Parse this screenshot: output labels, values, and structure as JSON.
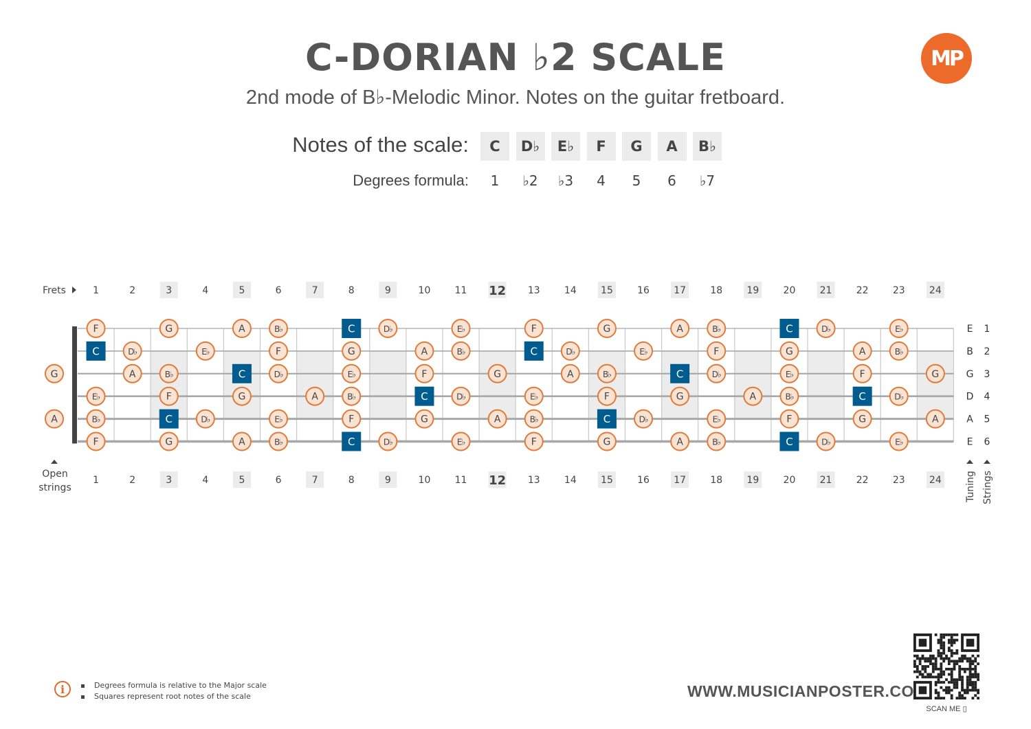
{
  "title": "C-DORIAN ♭2 SCALE",
  "subtitle": "2nd mode of B♭-Melodic Minor. Notes on the guitar fretboard.",
  "logo": "MP",
  "notes_label": "Notes of the scale:",
  "notes": [
    "C",
    "D♭",
    "E♭",
    "F",
    "G",
    "A",
    "B♭"
  ],
  "degrees_label": "Degrees formula:",
  "degrees": [
    "1",
    "♭2",
    "♭3",
    "4",
    "5",
    "6",
    "♭7"
  ],
  "frets_label": "Frets",
  "open_label_1": "Open",
  "open_label_2": "strings",
  "tuning_label": "Tuning",
  "strings_label": "Strings",
  "fret_numbers": [
    "1",
    "2",
    "3",
    "4",
    "5",
    "6",
    "7",
    "8",
    "9",
    "10",
    "11",
    "12",
    "13",
    "14",
    "15",
    "16",
    "17",
    "18",
    "19",
    "20",
    "21",
    "22",
    "23",
    "24"
  ],
  "highlight_frets": [
    3,
    5,
    7,
    9,
    12,
    15,
    17,
    19,
    21,
    24
  ],
  "root_note": "C",
  "colors": {
    "root": "#005b8f",
    "note_fill": "#fbe3d3",
    "note_stroke": "#e07b3a",
    "accent": "#ec6b2b"
  },
  "strings": [
    {
      "tuning": "E",
      "number": "1",
      "open": "",
      "notes": {
        "1": "F",
        "3": "G",
        "5": "A",
        "6": "B♭",
        "8": "C",
        "9": "D♭",
        "11": "E♭",
        "13": "F",
        "15": "G",
        "17": "A",
        "18": "B♭",
        "20": "C",
        "21": "D♭",
        "23": "E♭"
      }
    },
    {
      "tuning": "B",
      "number": "2",
      "open": "",
      "notes": {
        "1": "C",
        "2": "D♭",
        "4": "E♭",
        "6": "F",
        "8": "G",
        "10": "A",
        "11": "B♭",
        "13": "C",
        "14": "D♭",
        "16": "E♭",
        "18": "F",
        "20": "G",
        "22": "A",
        "23": "B♭"
      }
    },
    {
      "tuning": "G",
      "number": "3",
      "open": "G",
      "notes": {
        "2": "A",
        "3": "B♭",
        "5": "C",
        "6": "D♭",
        "8": "E♭",
        "10": "F",
        "12": "G",
        "14": "A",
        "15": "B♭",
        "17": "C",
        "18": "D♭",
        "20": "E♭",
        "22": "F",
        "24": "G"
      }
    },
    {
      "tuning": "D",
      "number": "4",
      "open": "",
      "notes": {
        "1": "E♭",
        "3": "F",
        "5": "G",
        "7": "A",
        "8": "B♭",
        "10": "C",
        "11": "D♭",
        "13": "E♭",
        "15": "F",
        "17": "G",
        "19": "A",
        "20": "B♭",
        "22": "C",
        "23": "D♭"
      }
    },
    {
      "tuning": "A",
      "number": "5",
      "open": "A",
      "notes": {
        "1": "B♭",
        "3": "C",
        "4": "D♭",
        "6": "E♭",
        "8": "F",
        "10": "G",
        "12": "A",
        "13": "B♭",
        "15": "C",
        "16": "D♭",
        "18": "E♭",
        "20": "F",
        "22": "G",
        "24": "A"
      }
    },
    {
      "tuning": "E",
      "number": "6",
      "open": "",
      "notes": {
        "1": "F",
        "3": "G",
        "5": "A",
        "6": "B♭",
        "8": "C",
        "9": "D♭",
        "11": "E♭",
        "13": "F",
        "15": "G",
        "17": "A",
        "18": "B♭",
        "20": "C",
        "21": "D♭",
        "23": "E♭"
      }
    }
  ],
  "info": [
    "Degrees formula is relative to the Major scale",
    "Squares represent root notes of the scale"
  ],
  "website": "WWW.MUSICIANPOSTER.COM",
  "scan_label": "SCAN ME"
}
